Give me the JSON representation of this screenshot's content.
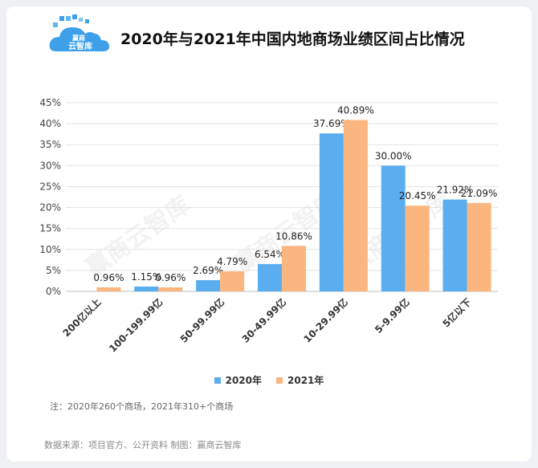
{
  "header": {
    "logo_text": "赢商云智库",
    "title": "2020年与2021年中国内地商场业绩区间占比情况"
  },
  "watermark": "赢商云智库",
  "chart_data": {
    "type": "bar",
    "title": "2020年与2021年中国内地商场业绩区间占比情况",
    "categories": [
      "200亿以上",
      "100-199.99亿",
      "50-99.99亿",
      "30-49.99亿",
      "10-29.99亿",
      "5-9.99亿",
      "5亿以下"
    ],
    "series": [
      {
        "name": "2020年",
        "values": [
          null,
          1.15,
          2.69,
          6.54,
          37.69,
          30.0,
          21.92
        ],
        "labels": [
          "",
          "1.15%",
          "2.69%",
          "6.54%",
          "37.69%",
          "30.00%",
          "21.92%"
        ],
        "color": "#5aaef0"
      },
      {
        "name": "2021年",
        "values": [
          0.96,
          0.96,
          4.79,
          10.86,
          40.89,
          20.45,
          21.09
        ],
        "labels": [
          "0.96%",
          "0.96%",
          "4.79%",
          "10.86%",
          "40.89%",
          "20.45%",
          "21.09%"
        ],
        "color": "#fbb57f"
      }
    ],
    "yticks": [
      "0%",
      "5%",
      "10%",
      "15%",
      "20%",
      "25%",
      "30%",
      "35%",
      "40%",
      "45%"
    ],
    "ylim": [
      0,
      45
    ],
    "grid": true,
    "legend_position": "bottom"
  },
  "note": "注：2020年260个商场，2021年310+个商场",
  "source": "数据来源：项目官方、公开资料   制图：赢商云智库"
}
